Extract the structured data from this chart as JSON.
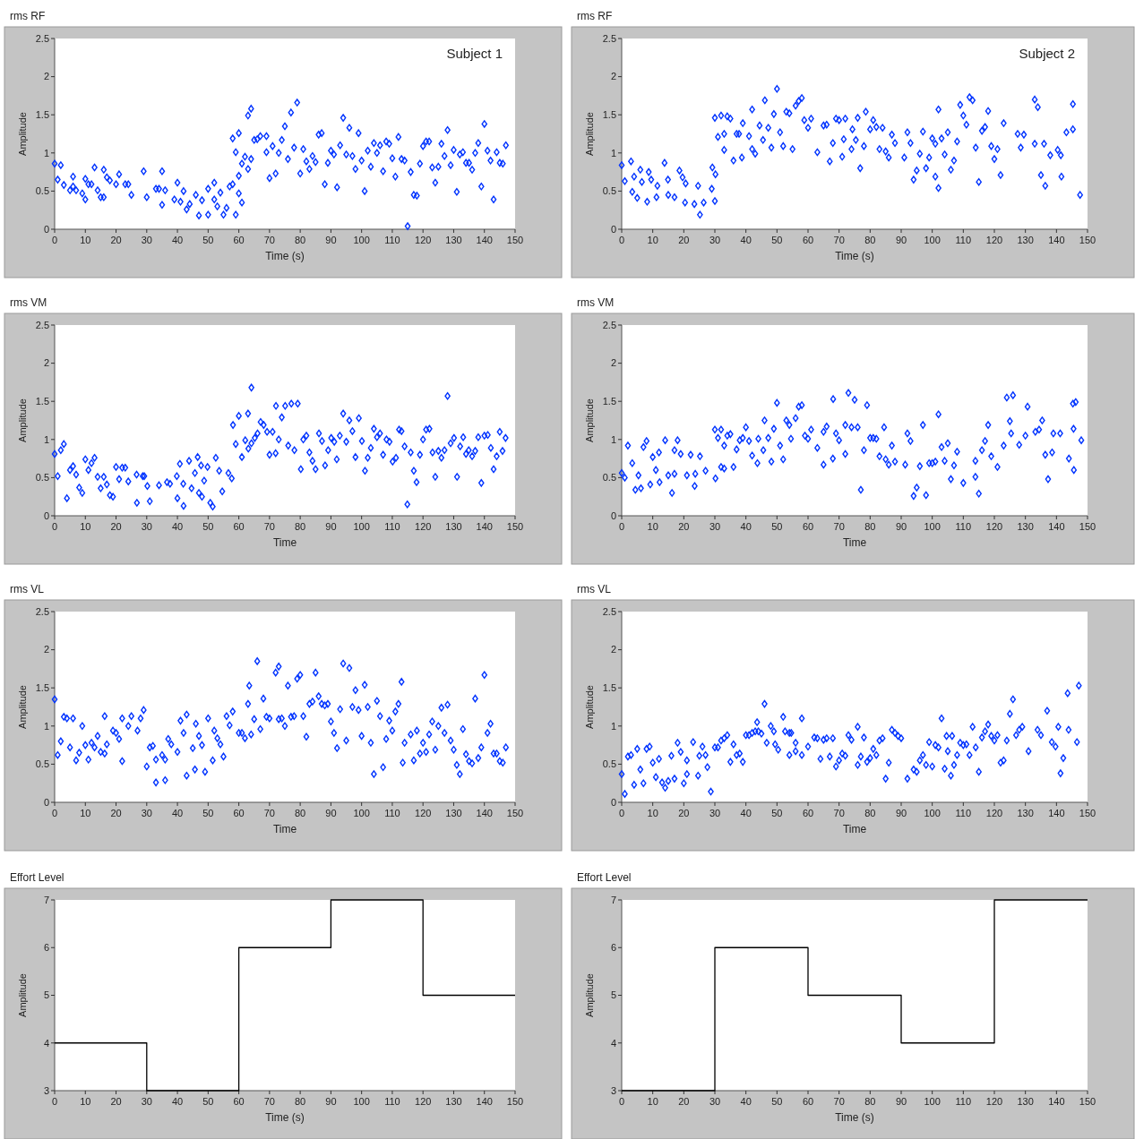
{
  "chart_data": [
    {
      "type": "scatter",
      "title": "rms RF",
      "xlabel": "Time (s)",
      "ylabel": "Amplitude",
      "annotations": [
        "Subject 1"
      ],
      "color": "#0033ff",
      "marker": "diamond",
      "xlim": [
        0,
        150
      ],
      "xticks": [
        0,
        10,
        20,
        30,
        40,
        50,
        60,
        70,
        80,
        90,
        100,
        110,
        120,
        130,
        140,
        150
      ],
      "ylim": [
        0,
        2.5
      ],
      "yticks": [
        0,
        0.5,
        1,
        1.5,
        2,
        2.5
      ],
      "x": [
        0,
        1,
        2,
        3,
        5,
        6,
        6,
        7,
        9,
        10,
        10,
        11,
        12,
        13,
        14,
        15,
        16,
        16,
        17,
        18,
        20,
        21,
        23,
        24,
        25,
        29,
        30,
        33,
        34,
        35,
        35,
        36,
        39,
        40,
        41,
        42,
        43,
        44,
        46,
        47,
        48,
        50,
        50,
        52,
        52,
        53,
        54,
        55,
        56,
        57,
        58,
        59,
        58,
        59,
        60,
        60,
        60,
        61,
        61,
        62,
        63,
        64,
        63,
        64,
        65,
        66,
        67,
        69,
        69,
        70,
        71,
        72,
        73,
        74,
        75,
        76,
        77,
        78,
        79,
        80,
        81,
        82,
        83,
        84,
        85,
        86,
        87,
        88,
        89,
        90,
        91,
        92,
        93,
        94,
        95,
        96,
        97,
        98,
        99,
        100,
        101,
        102,
        103,
        104,
        105,
        106,
        107,
        108,
        109,
        110,
        111,
        112,
        113,
        114,
        115,
        116,
        117,
        118,
        119,
        120,
        121,
        122,
        123,
        124,
        125,
        126,
        127,
        128,
        129,
        130,
        131,
        132,
        133,
        134,
        135,
        136,
        137,
        138,
        139,
        140,
        141,
        142,
        143,
        144,
        145,
        146,
        147
      ],
      "values": [
        0.86,
        0.65,
        0.84,
        0.58,
        0.51,
        0.69,
        0.56,
        0.51,
        0.47,
        0.39,
        0.66,
        0.59,
        0.59,
        0.81,
        0.51,
        0.42,
        0.42,
        0.78,
        0.68,
        0.64,
        0.59,
        0.72,
        0.59,
        0.59,
        0.45,
        0.76,
        0.42,
        0.53,
        0.53,
        0.76,
        0.32,
        0.51,
        0.39,
        0.61,
        0.36,
        0.5,
        0.26,
        0.33,
        0.45,
        0.18,
        0.38,
        0.19,
        0.53,
        0.61,
        0.39,
        0.3,
        0.48,
        0.19,
        0.28,
        0.56,
        0.59,
        0.19,
        1.19,
        1.01,
        0.47,
        0.7,
        1.26,
        0.35,
        0.86,
        0.95,
        1.49,
        1.58,
        0.79,
        0.92,
        1.17,
        1.18,
        1.22,
        1.22,
        1.01,
        0.67,
        1.09,
        0.73,
        1.0,
        1.17,
        1.35,
        0.92,
        1.53,
        1.07,
        1.66,
        0.73,
        1.05,
        0.89,
        0.79,
        0.96,
        0.88,
        1.24,
        1.26,
        0.59,
        0.87,
        1.03,
        0.98,
        0.55,
        1.1,
        1.46,
        0.98,
        1.33,
        0.96,
        0.79,
        1.26,
        0.9,
        0.5,
        1.03,
        0.82,
        1.13,
        1.0,
        1.1,
        0.76,
        1.15,
        1.12,
        0.93,
        0.69,
        1.21,
        0.92,
        0.9,
        0.04,
        0.75,
        0.45,
        0.44,
        0.86,
        1.09,
        1.15,
        1.15,
        0.81,
        0.61,
        0.82,
        1.12,
        0.96,
        1.3,
        0.84,
        1.04,
        0.49,
        0.98,
        1.01,
        0.87,
        0.87,
        0.78,
        1.0,
        1.13,
        0.56,
        1.38,
        1.03,
        0.9,
        0.39,
        1.01,
        0.87,
        0.86,
        1.1
      ]
    },
    {
      "type": "scatter",
      "title": "rms RF",
      "xlabel": "Time (s)",
      "ylabel": "Amplitude",
      "annotations": [
        "Subject 2"
      ],
      "color": "#0033ff",
      "marker": "diamond",
      "xlim": [
        0,
        150
      ],
      "xticks": [
        0,
        10,
        20,
        30,
        40,
        50,
        60,
        70,
        80,
        90,
        100,
        110,
        120,
        130,
        140,
        150
      ],
      "ylim": [
        0,
        2.5
      ],
      "yticks": [
        0,
        0.5,
        1,
        1.5,
        2,
        2.5
      ],
      "x": [
        0,
        1,
        3,
        3.4,
        4,
        5,
        6,
        6.5,
        8.2,
        8.7,
        9.5,
        11.2,
        11.5,
        13.8,
        14.9,
        15,
        17,
        18.6,
        19.6,
        20.4,
        20.6,
        23.4,
        24.6,
        25.2,
        26.4,
        29,
        29.2,
        30,
        30.2,
        30,
        31,
        32,
        33,
        33,
        34,
        35,
        36,
        37,
        37.8,
        38.7,
        39,
        41,
        42,
        42,
        43,
        44.4,
        45.5,
        46.1,
        47.2,
        48.2,
        49,
        50,
        51,
        52,
        53,
        54,
        55,
        56,
        57,
        58,
        58.8,
        60,
        61,
        63,
        65,
        66,
        67,
        68,
        69,
        70,
        71,
        71.5,
        72,
        74,
        74.3,
        75.4,
        76,
        76.8,
        78,
        78.6,
        80,
        81,
        82,
        83,
        84,
        85,
        86,
        87,
        88,
        91,
        92,
        93,
        94,
        95,
        96,
        97,
        98,
        99,
        100,
        101,
        101,
        102,
        102,
        103,
        104,
        105,
        106,
        107,
        108,
        109,
        110,
        111,
        112,
        113,
        114,
        115,
        116,
        117,
        118,
        119,
        120,
        121,
        122,
        123,
        127.5,
        128.5,
        129.5,
        133,
        133,
        134,
        135,
        136,
        136.4,
        138,
        140.4,
        141.4,
        141.6,
        143.2,
        145.3,
        145.3,
        147.6
      ],
      "values": [
        0.84,
        0.63,
        0.89,
        0.49,
        0.69,
        0.41,
        0.78,
        0.62,
        0.36,
        0.75,
        0.65,
        0.42,
        0.57,
        0.87,
        0.65,
        0.45,
        0.42,
        0.77,
        0.68,
        0.35,
        0.6,
        0.33,
        0.57,
        0.19,
        0.35,
        0.53,
        0.81,
        0.37,
        0.72,
        1.46,
        1.21,
        1.49,
        1.25,
        1.04,
        1.48,
        1.45,
        0.9,
        1.25,
        1.25,
        0.94,
        1.39,
        1.22,
        1.05,
        1.57,
        0.99,
        1.36,
        1.17,
        1.69,
        1.33,
        1.07,
        1.51,
        1.84,
        1.27,
        1.09,
        1.54,
        1.52,
        1.05,
        1.62,
        1.68,
        1.72,
        1.43,
        1.33,
        1.45,
        1.01,
        1.36,
        1.37,
        0.89,
        1.13,
        1.45,
        1.43,
        0.95,
        1.18,
        1.45,
        1.05,
        1.31,
        1.17,
        1.46,
        0.8,
        1.09,
        1.54,
        1.31,
        1.43,
        1.34,
        1.05,
        1.33,
        1.02,
        0.94,
        1.24,
        1.13,
        0.94,
        1.27,
        1.13,
        0.65,
        0.77,
        0.99,
        1.28,
        0.8,
        0.94,
        1.19,
        1.12,
        0.69,
        1.57,
        0.54,
        1.19,
        0.98,
        1.27,
        0.78,
        0.9,
        1.15,
        1.63,
        1.49,
        1.37,
        1.73,
        1.69,
        1.07,
        0.62,
        1.29,
        1.34,
        1.55,
        1.09,
        0.92,
        1.05,
        0.71,
        1.39,
        1.25,
        1.07,
        1.24,
        1.12,
        1.7,
        1.6,
        0.71,
        1.12,
        0.57,
        0.97,
        1.04,
        0.97,
        0.69,
        1.27,
        1.64,
        1.31,
        0.45
      ]
    },
    {
      "type": "scatter",
      "title": "rms VM",
      "xlabel": "Time",
      "ylabel": "Amplitude",
      "color": "#0033ff",
      "marker": "diamond",
      "xlim": [
        0,
        150
      ],
      "xticks": [
        0,
        10,
        20,
        30,
        40,
        50,
        60,
        70,
        80,
        90,
        100,
        110,
        120,
        130,
        140,
        150
      ],
      "ylim": [
        0,
        2.5
      ],
      "yticks": [
        0,
        0.5,
        1,
        1.5,
        2,
        2.5
      ],
      "x": [
        0,
        1,
        2,
        3,
        4,
        5,
        6,
        7,
        8,
        9,
        10,
        11,
        12,
        13,
        14,
        15,
        16,
        17,
        18,
        19,
        20,
        21,
        22,
        23,
        24,
        26.7,
        26.8,
        28.7,
        29.2,
        30.2,
        31,
        34,
        36.6,
        37.6,
        39.8,
        40,
        40.8,
        41.9,
        42,
        43.8,
        44.6,
        45.7,
        46.6,
        47,
        47.7,
        48,
        48.7,
        49.8,
        50.7,
        51.5,
        52.5,
        53.6,
        54.6,
        56.6,
        57.7,
        58.1,
        59,
        60,
        61,
        62.1,
        63,
        63.1,
        64.1,
        64.1,
        65.2,
        66.1,
        67.1,
        68.1,
        69.2,
        70,
        71,
        72,
        72.1,
        73,
        74,
        75.1,
        76.1,
        77.1,
        78.1,
        79.2,
        80.2,
        81,
        82,
        83,
        84,
        85,
        86.1,
        87.1,
        88.1,
        89.1,
        90.1,
        91.1,
        91.9,
        92.9,
        94,
        95,
        96,
        97,
        98,
        99.1,
        100.1,
        101.1,
        102,
        103,
        104,
        105,
        106,
        107,
        108.1,
        109.1,
        110.1,
        111.2,
        112.2,
        113,
        114,
        114.9,
        116,
        117,
        117.9,
        119,
        120,
        121,
        122.1,
        123.1,
        124,
        125,
        126,
        127,
        128,
        129,
        130.1,
        131.1,
        132.1,
        133.1,
        134,
        134.9,
        136,
        137,
        138,
        139,
        140,
        141.1,
        142.1,
        143,
        144,
        145,
        145.9,
        146.9
      ],
      "values": [
        0.81,
        0.52,
        0.86,
        0.94,
        0.23,
        0.6,
        0.65,
        0.54,
        0.37,
        0.3,
        0.74,
        0.6,
        0.69,
        0.76,
        0.51,
        0.36,
        0.51,
        0.41,
        0.27,
        0.25,
        0.64,
        0.48,
        0.63,
        0.63,
        0.45,
        0.54,
        0.17,
        0.52,
        0.52,
        0.39,
        0.19,
        0.4,
        0.44,
        0.42,
        0.52,
        0.23,
        0.68,
        0.42,
        0.13,
        0.72,
        0.36,
        0.56,
        0.77,
        0.3,
        0.66,
        0.25,
        0.46,
        0.64,
        0.17,
        0.12,
        0.76,
        0.59,
        0.32,
        0.56,
        0.49,
        1.19,
        0.94,
        1.31,
        0.77,
        0.99,
        1.34,
        0.88,
        1.68,
        0.95,
        1.02,
        1.08,
        1.23,
        1.19,
        1.1,
        0.8,
        1.1,
        0.82,
        1.44,
        1.0,
        1.29,
        1.44,
        0.92,
        1.47,
        0.86,
        1.47,
        0.61,
        1.0,
        1.05,
        0.83,
        0.72,
        0.61,
        1.08,
        0.98,
        0.66,
        0.86,
        1.02,
        0.97,
        0.74,
        1.05,
        1.34,
        0.97,
        1.25,
        1.11,
        0.77,
        1.28,
        0.98,
        0.59,
        0.76,
        0.89,
        1.14,
        1.03,
        1.08,
        0.8,
        1.0,
        0.97,
        0.71,
        0.76,
        1.13,
        1.11,
        0.91,
        0.15,
        0.83,
        0.59,
        0.44,
        0.8,
        1.0,
        1.13,
        1.14,
        0.83,
        0.51,
        0.85,
        0.76,
        0.86,
        1.57,
        0.95,
        1.02,
        0.51,
        0.91,
        1.03,
        0.81,
        0.86,
        0.78,
        0.85,
        1.03,
        0.43,
        1.05,
        1.06,
        0.89,
        0.61,
        0.78,
        1.1,
        0.85,
        1.02
      ]
    },
    {
      "type": "scatter",
      "title": "rms VM",
      "xlabel": "Time",
      "ylabel": "Amplitude",
      "color": "#0033ff",
      "marker": "diamond",
      "xlim": [
        0,
        150
      ],
      "xticks": [
        0,
        10,
        20,
        30,
        40,
        50,
        60,
        70,
        80,
        90,
        100,
        110,
        120,
        130,
        140,
        150
      ],
      "ylim": [
        0,
        2.5
      ],
      "yticks": [
        0,
        0.5,
        1,
        1.5,
        2,
        2.5
      ],
      "x": [
        0,
        1,
        2,
        3.4,
        4.4,
        5.4,
        6.2,
        7,
        8,
        9.2,
        10,
        11,
        12,
        12.2,
        14,
        15,
        16.2,
        17,
        17,
        18,
        19,
        21,
        22.2,
        23.5,
        23.7,
        25.2,
        27,
        30.2,
        30,
        31,
        32,
        32,
        33,
        33,
        34,
        35,
        36,
        37,
        38,
        39,
        40,
        41,
        42,
        43.7,
        44,
        45.6,
        46,
        47.2,
        48.2,
        49,
        50,
        51,
        52,
        53,
        54,
        54.5,
        56,
        57,
        58,
        59,
        60,
        61,
        63,
        65,
        65,
        66,
        68,
        68.1,
        69,
        70,
        72,
        72,
        73,
        74,
        75,
        76,
        77,
        78,
        79,
        80,
        81,
        82,
        83,
        84.5,
        85,
        86,
        87,
        88,
        91.3,
        92,
        93,
        94,
        95,
        96,
        97,
        98,
        99,
        100,
        101,
        102,
        103,
        104,
        105,
        106,
        107,
        108,
        110,
        113.9,
        113.9,
        115,
        116,
        117,
        118,
        119,
        121,
        123,
        124,
        125,
        125.4,
        126,
        128,
        130,
        130.7,
        133.2,
        134.4,
        135.4,
        136.4,
        137.3,
        138.6,
        139,
        141.2,
        144,
        145.3,
        145.5,
        145.6,
        146.2,
        148
      ],
      "values": [
        0.56,
        0.5,
        0.92,
        0.69,
        0.34,
        0.53,
        0.36,
        0.9,
        0.98,
        0.41,
        0.77,
        0.6,
        0.83,
        0.44,
        0.99,
        0.53,
        0.3,
        0.86,
        0.55,
        0.99,
        0.81,
        0.53,
        0.8,
        0.39,
        0.55,
        0.78,
        0.59,
        0.49,
        1.13,
        1.02,
        0.64,
        1.13,
        0.92,
        0.62,
        1.05,
        1.07,
        0.64,
        0.87,
        0.99,
        1.02,
        1.16,
        0.98,
        0.79,
        0.69,
        1.01,
        0.86,
        1.25,
        1.02,
        0.71,
        1.14,
        1.48,
        0.92,
        0.74,
        1.25,
        1.19,
        1.01,
        1.28,
        1.43,
        1.45,
        1.05,
        1.01,
        1.13,
        0.89,
        1.1,
        0.67,
        1.17,
        0.75,
        1.53,
        1.08,
        0.99,
        0.81,
        1.19,
        1.61,
        1.16,
        1.52,
        1.16,
        0.34,
        0.86,
        1.45,
        1.02,
        1.02,
        1.01,
        0.78,
        1.16,
        0.74,
        0.67,
        0.92,
        0.71,
        0.67,
        1.08,
        0.98,
        0.26,
        0.37,
        0.65,
        1.19,
        0.27,
        0.69,
        0.69,
        0.71,
        1.33,
        0.9,
        0.72,
        0.95,
        0.48,
        0.66,
        0.84,
        0.43,
        0.72,
        0.51,
        0.29,
        0.86,
        0.98,
        1.19,
        0.78,
        0.64,
        0.92,
        1.55,
        1.24,
        1.08,
        1.58,
        0.93,
        1.05,
        1.43,
        1.1,
        1.13,
        1.25,
        0.8,
        0.48,
        0.83,
        1.08,
        1.08,
        0.75,
        1.47,
        1.14,
        0.6,
        1.49,
        0.99
      ]
    },
    {
      "type": "scatter",
      "title": "rms VL",
      "xlabel": "Time",
      "ylabel": "Amplitude",
      "color": "#0033ff",
      "marker": "diamond",
      "xlim": [
        0,
        150
      ],
      "xticks": [
        0,
        10,
        20,
        30,
        40,
        50,
        60,
        70,
        80,
        90,
        100,
        110,
        120,
        130,
        140,
        150
      ],
      "ylim": [
        0,
        2.5
      ],
      "yticks": [
        0,
        0.5,
        1,
        1.5,
        2,
        2.5
      ],
      "x": [
        0,
        1,
        2,
        3,
        4,
        5,
        6,
        7,
        8,
        9,
        10,
        11,
        12,
        13,
        14,
        15,
        16.3,
        16.3,
        17,
        19,
        20,
        21,
        22,
        22,
        24,
        25,
        27,
        28,
        29,
        30,
        31,
        32,
        33,
        33,
        35,
        36,
        36,
        37,
        38,
        40,
        41,
        42,
        43,
        43,
        45,
        45.7,
        46,
        47,
        48,
        49,
        50,
        51.5,
        52,
        53,
        54,
        55,
        56,
        57,
        58,
        60,
        61,
        62,
        63,
        63.4,
        64,
        65,
        66,
        67,
        68,
        69,
        70,
        72,
        73,
        73,
        74,
        75,
        76,
        77,
        78,
        79,
        80,
        81,
        82,
        83,
        84,
        85,
        86,
        87,
        88,
        89,
        90,
        91,
        92,
        93,
        94,
        95,
        96,
        97,
        98,
        99,
        100,
        101,
        102,
        103,
        104,
        105,
        106,
        107,
        108,
        109,
        110,
        111,
        112,
        113,
        113.4,
        114,
        116,
        117,
        118,
        119,
        120,
        121,
        122,
        123,
        124,
        125,
        126,
        127,
        128,
        129,
        130,
        131,
        132,
        133,
        134,
        135,
        136,
        137,
        138,
        139,
        140,
        141,
        142,
        143,
        144,
        145,
        146,
        147
      ],
      "values": [
        1.35,
        0.62,
        0.8,
        1.12,
        1.1,
        0.72,
        1.1,
        0.55,
        0.65,
        1.0,
        0.75,
        0.56,
        0.78,
        0.72,
        0.87,
        0.66,
        0.64,
        1.13,
        0.76,
        0.94,
        0.91,
        0.83,
        1.1,
        0.54,
        1.0,
        1.13,
        0.94,
        1.1,
        1.21,
        0.47,
        0.72,
        0.74,
        0.56,
        0.26,
        0.62,
        0.56,
        0.29,
        0.83,
        0.76,
        0.66,
        1.07,
        0.91,
        1.15,
        0.35,
        0.71,
        0.43,
        1.03,
        0.87,
        0.75,
        0.4,
        1.1,
        0.55,
        0.94,
        0.84,
        0.76,
        0.6,
        1.13,
        1.01,
        1.19,
        0.91,
        0.91,
        0.84,
        1.29,
        1.53,
        0.89,
        1.09,
        1.85,
        0.96,
        1.36,
        1.12,
        1.1,
        1.7,
        1.78,
        1.09,
        1.1,
        1.0,
        1.53,
        1.12,
        1.13,
        1.62,
        1.67,
        1.13,
        0.86,
        1.29,
        1.32,
        1.7,
        1.39,
        1.29,
        1.27,
        1.29,
        1.06,
        0.91,
        0.71,
        1.22,
        1.82,
        0.81,
        1.76,
        1.25,
        1.47,
        1.21,
        0.87,
        1.54,
        1.25,
        0.78,
        0.37,
        1.33,
        1.13,
        0.46,
        0.83,
        1.07,
        0.94,
        1.19,
        1.29,
        1.58,
        0.52,
        0.78,
        0.89,
        0.55,
        0.94,
        0.64,
        0.78,
        0.66,
        0.89,
        1.06,
        0.69,
        1.0,
        1.24,
        0.91,
        1.28,
        0.81,
        0.69,
        0.49,
        0.37,
        0.96,
        0.63,
        0.54,
        0.51,
        1.36,
        0.58,
        0.72,
        1.67,
        0.91,
        1.03,
        0.64,
        0.64,
        0.54,
        0.52,
        0.72
      ]
    },
    {
      "type": "scatter",
      "title": "rms VL",
      "xlabel": "Time",
      "ylabel": "Amplitude",
      "color": "#0033ff",
      "marker": "diamond",
      "xlim": [
        0,
        150
      ],
      "xticks": [
        0,
        10,
        20,
        30,
        40,
        50,
        60,
        70,
        80,
        90,
        100,
        110,
        120,
        130,
        140,
        150
      ],
      "ylim": [
        0,
        2.5
      ],
      "yticks": [
        0,
        0.5,
        1,
        1.5,
        2,
        2.5
      ],
      "x": [
        0,
        1,
        2,
        3,
        4,
        5,
        6,
        7,
        8,
        9,
        10,
        11,
        12,
        13,
        14,
        15,
        16,
        17,
        18,
        19,
        20,
        21,
        21,
        23,
        24.6,
        25,
        26,
        27,
        27.6,
        28.7,
        30,
        31,
        32,
        33,
        34,
        35,
        36,
        37,
        38,
        39,
        40,
        41,
        42,
        43,
        43.6,
        44,
        45,
        46,
        46.7,
        48,
        49,
        49.4,
        50.4,
        52,
        52.6,
        54,
        54,
        54.6,
        56,
        56,
        58,
        58,
        60,
        62,
        63,
        64,
        65,
        66,
        67,
        68,
        69,
        70,
        71,
        72,
        73,
        74,
        76,
        76,
        77,
        78,
        79,
        80,
        81,
        82,
        83,
        84,
        85,
        86,
        87,
        88,
        89,
        90,
        92,
        94,
        95,
        96,
        97,
        98,
        99,
        100,
        101,
        102,
        103,
        104,
        104.6,
        105,
        106,
        106.4,
        107,
        108,
        109,
        110,
        111,
        112,
        113,
        114,
        115,
        116,
        117,
        118,
        119,
        120,
        121,
        122,
        123,
        124,
        125,
        126,
        127,
        128,
        129,
        131,
        133.9,
        135,
        137,
        138.5,
        139.7,
        140.6,
        141.3,
        142.2,
        143.6,
        143.9,
        146.6,
        147.2
      ],
      "values": [
        0.37,
        0.11,
        0.6,
        0.62,
        0.23,
        0.7,
        0.43,
        0.25,
        0.7,
        0.73,
        0.52,
        0.33,
        0.57,
        0.26,
        0.19,
        0.28,
        0.61,
        0.31,
        0.78,
        0.66,
        0.25,
        0.55,
        0.37,
        0.79,
        0.35,
        0.61,
        0.73,
        0.62,
        0.46,
        0.14,
        0.72,
        0.72,
        0.81,
        0.84,
        0.88,
        0.53,
        0.76,
        0.62,
        0.64,
        0.53,
        0.88,
        0.88,
        0.91,
        0.93,
        1.05,
        0.93,
        0.9,
        1.29,
        0.78,
        1.0,
        0.93,
        0.76,
        0.69,
        1.12,
        0.93,
        0.91,
        0.62,
        0.91,
        0.67,
        0.78,
        0.62,
        1.1,
        0.73,
        0.85,
        0.84,
        0.57,
        0.82,
        0.84,
        0.6,
        0.84,
        0.47,
        0.55,
        0.64,
        0.61,
        0.88,
        0.82,
        0.99,
        0.49,
        0.6,
        0.85,
        0.53,
        0.58,
        0.7,
        0.62,
        0.81,
        0.84,
        0.31,
        0.52,
        0.95,
        0.91,
        0.87,
        0.84,
        0.31,
        0.43,
        0.4,
        0.55,
        0.62,
        0.49,
        0.79,
        0.47,
        0.75,
        0.72,
        1.1,
        0.44,
        0.87,
        0.67,
        0.35,
        0.87,
        0.49,
        0.62,
        0.78,
        0.75,
        0.76,
        0.62,
        0.99,
        0.72,
        0.4,
        0.85,
        0.93,
        1.02,
        0.87,
        0.81,
        0.88,
        0.52,
        0.55,
        0.81,
        1.16,
        1.35,
        0.88,
        0.95,
        0.99,
        0.67,
        0.95,
        0.88,
        1.2,
        0.79,
        0.73,
        0.99,
        0.38,
        0.58,
        1.43,
        0.95,
        0.79,
        1.53
      ]
    },
    {
      "type": "step",
      "title": "Effort Level",
      "xlabel": "Time (s)",
      "ylabel": "Amplitude",
      "color": "#000000",
      "xlim": [
        0,
        150
      ],
      "xticks": [
        0,
        10,
        20,
        30,
        40,
        50,
        60,
        70,
        80,
        90,
        100,
        110,
        120,
        130,
        140,
        150
      ],
      "ylim": [
        3,
        7
      ],
      "yticks": [
        3,
        4,
        5,
        6,
        7
      ],
      "x": [
        0,
        30,
        60,
        90,
        120,
        150
      ],
      "values": [
        4,
        3,
        6,
        7,
        5,
        5
      ]
    },
    {
      "type": "step",
      "title": "Effort Level",
      "xlabel": "Time (s)",
      "ylabel": "Amplitude",
      "color": "#000000",
      "xlim": [
        0,
        150
      ],
      "xticks": [
        0,
        10,
        20,
        30,
        40,
        50,
        60,
        70,
        80,
        90,
        100,
        110,
        120,
        130,
        140,
        150
      ],
      "ylim": [
        3,
        7
      ],
      "yticks": [
        3,
        4,
        5,
        6,
        7
      ],
      "x": [
        0,
        30,
        60,
        90,
        120,
        150
      ],
      "values": [
        3,
        6,
        5,
        4,
        7,
        7
      ]
    }
  ]
}
